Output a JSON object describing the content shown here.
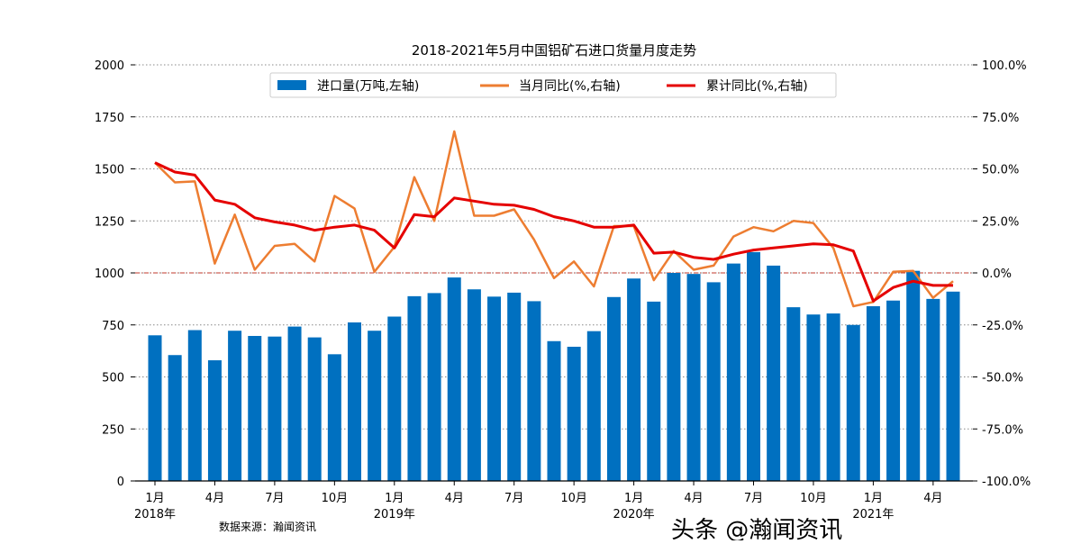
{
  "chart_data": {
    "type": "bar+line",
    "title": "2018-2021年5月中国铝矿石进口货量月度走势",
    "source": "数据来源：瀚闻资讯",
    "watermark": "头条 @瀚闻资讯",
    "legend_position": "top-center",
    "grid": "horizontal dotted",
    "left_axis": {
      "ylim": [
        0,
        2000
      ],
      "ticks": [
        "0",
        "250",
        "500",
        "750",
        "1000",
        "1250",
        "1500",
        "1750",
        "2000"
      ]
    },
    "right_axis": {
      "ylim": [
        -100,
        100
      ],
      "ticks": [
        "-100.0%",
        "-75.0%",
        "-50.0%",
        "-25.0%",
        "0.0%",
        "25.0%",
        "50.0%",
        "75.0%",
        "100.0%"
      ]
    },
    "reference_line": {
      "value": 0,
      "axis": "right",
      "color": "#c0392b"
    },
    "x_tick_labels": [
      {
        "month": "1月",
        "year": "2018年"
      },
      {
        "month": "4月"
      },
      {
        "month": "7月"
      },
      {
        "month": "10月"
      },
      {
        "month": "1月",
        "year": "2019年"
      },
      {
        "month": "4月"
      },
      {
        "month": "7月"
      },
      {
        "month": "10月"
      },
      {
        "month": "1月",
        "year": "2020年"
      },
      {
        "month": "4月"
      },
      {
        "month": "7月"
      },
      {
        "month": "10月"
      },
      {
        "month": "1月",
        "year": "2021年"
      },
      {
        "month": "4月"
      }
    ],
    "series": [
      {
        "name": "进口量(万吨,左轴)",
        "type": "bar",
        "axis": "left",
        "color": "#0070c0",
        "values": [
          700,
          605,
          725,
          580,
          722,
          697,
          694,
          742,
          690,
          609,
          762,
          722,
          790,
          888,
          903,
          978,
          921,
          886,
          905,
          864,
          672,
          645,
          720,
          884,
          973,
          862,
          1000,
          995,
          955,
          1045,
          1100,
          1035,
          835,
          800,
          805,
          750,
          840,
          867,
          1010,
          875,
          910
        ]
      },
      {
        "name": "当月同比(%,右轴)",
        "type": "line",
        "axis": "right",
        "color": "#ed7d31",
        "values": [
          53,
          43.5,
          44,
          4.5,
          28,
          1.5,
          13,
          14,
          5.5,
          37,
          31,
          0.5,
          12.5,
          46,
          25,
          68,
          27.5,
          27.5,
          30.5,
          16,
          -2.5,
          5.5,
          -6.5,
          22.5,
          22.5,
          -3.5,
          10.5,
          1.5,
          3.5,
          17.5,
          22,
          20,
          25,
          24,
          12,
          -16,
          -14,
          0.5,
          1,
          -12,
          -4
        ]
      },
      {
        "name": "累计同比(%,右轴)",
        "type": "line",
        "axis": "right",
        "color": "#e50000",
        "values": [
          53,
          48.5,
          47,
          35,
          33,
          26.5,
          24.5,
          23,
          20.5,
          22,
          23,
          20.5,
          12,
          28,
          27,
          36,
          34.5,
          33,
          32.5,
          30.5,
          27,
          25,
          22,
          22,
          23,
          9.5,
          10,
          7.5,
          6.5,
          9,
          11,
          12,
          13,
          14,
          13.5,
          10.5,
          -13.5,
          -7,
          -4,
          -6,
          -6
        ]
      }
    ]
  }
}
